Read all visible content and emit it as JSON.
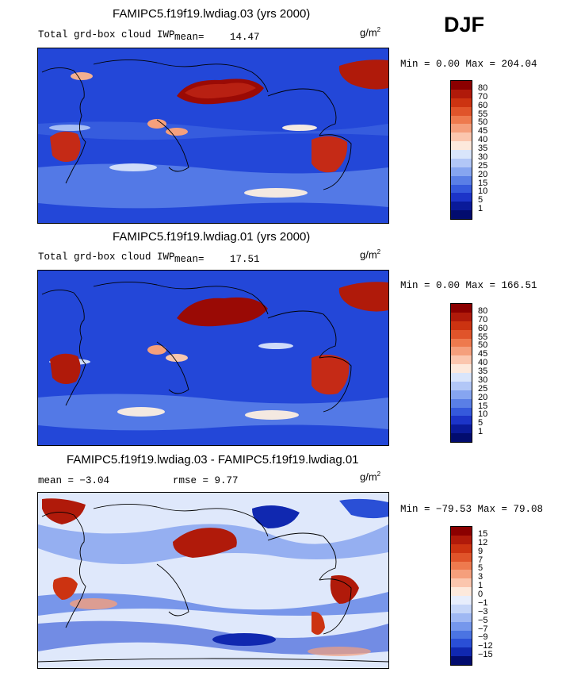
{
  "season": "DJF",
  "units_main": "g/m",
  "units_sup": "2",
  "panels": [
    {
      "title": "FAMIPC5.f19f19.lwdiag.03 (yrs 2000)",
      "field": "Total grd-box cloud IWP",
      "mean_label": "mean=",
      "mean_value": "14.47",
      "minmax": "Min =   0.00 Max = 204.04",
      "colorbar": {
        "labels": [
          "80",
          "70",
          "60",
          "55",
          "50",
          "45",
          "40",
          "35",
          "30",
          "25",
          "20",
          "15",
          "10",
          "5",
          "1"
        ],
        "colors": [
          "#8b0000",
          "#b01a0a",
          "#cc3311",
          "#e0542a",
          "#ee7a4e",
          "#f59f7c",
          "#fbc6ae",
          "#fde9dc",
          "#d9e5fb",
          "#b2c7f7",
          "#86a5f0",
          "#5a7fe6",
          "#3559dc",
          "#1c34c8",
          "#0a1a99",
          "#020c6e"
        ]
      },
      "chart_data": {
        "type": "heatmap",
        "title": "FAMIPC5.f19f19.lwdiag.03 (yrs 2000)",
        "variable": "Total grd-box cloud IWP",
        "units": "g/m2",
        "mean": 14.47,
        "min": 0.0,
        "max": 204.04,
        "contour_levels": [
          1,
          5,
          10,
          15,
          20,
          25,
          30,
          35,
          40,
          45,
          50,
          55,
          60,
          70,
          80
        ]
      }
    },
    {
      "title": "FAMIPC5.f19f19.lwdiag.01 (yrs 2000)",
      "field": "Total grd-box cloud IWP",
      "mean_label": "mean=",
      "mean_value": "17.51",
      "minmax": "Min =   0.00 Max = 166.51",
      "colorbar": {
        "labels": [
          "80",
          "70",
          "60",
          "55",
          "50",
          "45",
          "40",
          "35",
          "30",
          "25",
          "20",
          "15",
          "10",
          "5",
          "1"
        ],
        "colors": [
          "#8b0000",
          "#b01a0a",
          "#cc3311",
          "#e0542a",
          "#ee7a4e",
          "#f59f7c",
          "#fbc6ae",
          "#fde9dc",
          "#d9e5fb",
          "#b2c7f7",
          "#86a5f0",
          "#5a7fe6",
          "#3559dc",
          "#1c34c8",
          "#0a1a99",
          "#020c6e"
        ]
      },
      "chart_data": {
        "type": "heatmap",
        "title": "FAMIPC5.f19f19.lwdiag.01 (yrs 2000)",
        "variable": "Total grd-box cloud IWP",
        "units": "g/m2",
        "mean": 17.51,
        "min": 0.0,
        "max": 166.51,
        "contour_levels": [
          1,
          5,
          10,
          15,
          20,
          25,
          30,
          35,
          40,
          45,
          50,
          55,
          60,
          70,
          80
        ]
      }
    },
    {
      "title": "FAMIPC5.f19f19.lwdiag.03 - FAMIPC5.f19f19.lwdiag.01",
      "mean_text": "mean =  −3.04",
      "rmse_text": "rmse =   9.77",
      "minmax": "Min = −79.53 Max =  79.08",
      "colorbar": {
        "labels": [
          "15",
          "12",
          "9",
          "7",
          "5",
          "3",
          "1",
          "0",
          "−1",
          "−3",
          "−5",
          "−7",
          "−9",
          "−12",
          "−15"
        ],
        "colors": [
          "#8b0000",
          "#b01a0a",
          "#cc3311",
          "#e0542a",
          "#ee7a4e",
          "#f59f7c",
          "#fbc6ae",
          "#fde9dc",
          "#e8eefc",
          "#c6d6f8",
          "#9fb8f3",
          "#7597ec",
          "#4b74e2",
          "#2a4fd6",
          "#1028b0",
          "#020c6e"
        ]
      },
      "chart_data": {
        "type": "heatmap",
        "title": "FAMIPC5.f19f19.lwdiag.03 - FAMIPC5.f19f19.lwdiag.01",
        "units": "g/m2",
        "mean": -3.04,
        "rmse": 9.77,
        "min": -79.53,
        "max": 79.08,
        "contour_levels": [
          -15,
          -12,
          -9,
          -7,
          -5,
          -3,
          -1,
          0,
          1,
          3,
          5,
          7,
          9,
          12,
          15
        ]
      }
    }
  ]
}
